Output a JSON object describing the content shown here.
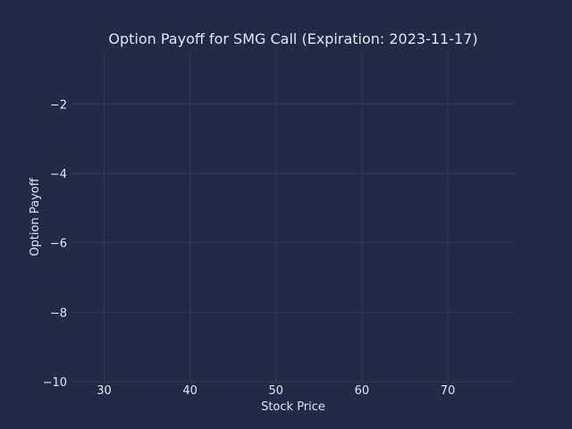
{
  "chart_data": {
    "type": "line",
    "title": "Option Payoff for SMG Call (Expiration: 2023-11-17)",
    "xlabel": "Stock Price",
    "ylabel": "Option Payoff",
    "xlim": [
      26.2,
      77.8
    ],
    "ylim": [
      -10,
      -0.5
    ],
    "x_ticks": [
      30,
      40,
      50,
      60,
      70
    ],
    "y_ticks": [
      -2,
      -4,
      -6,
      -8,
      -10
    ],
    "x_tick_labels": [
      "30",
      "40",
      "50",
      "60",
      "70"
    ],
    "y_tick_labels": [
      "−2",
      "−4",
      "−6",
      "−8",
      "−10"
    ],
    "grid": true,
    "series": []
  },
  "theme": {
    "background": "#222a46",
    "grid_color": "#2d3a62",
    "text_color": "#e2e6ef"
  }
}
